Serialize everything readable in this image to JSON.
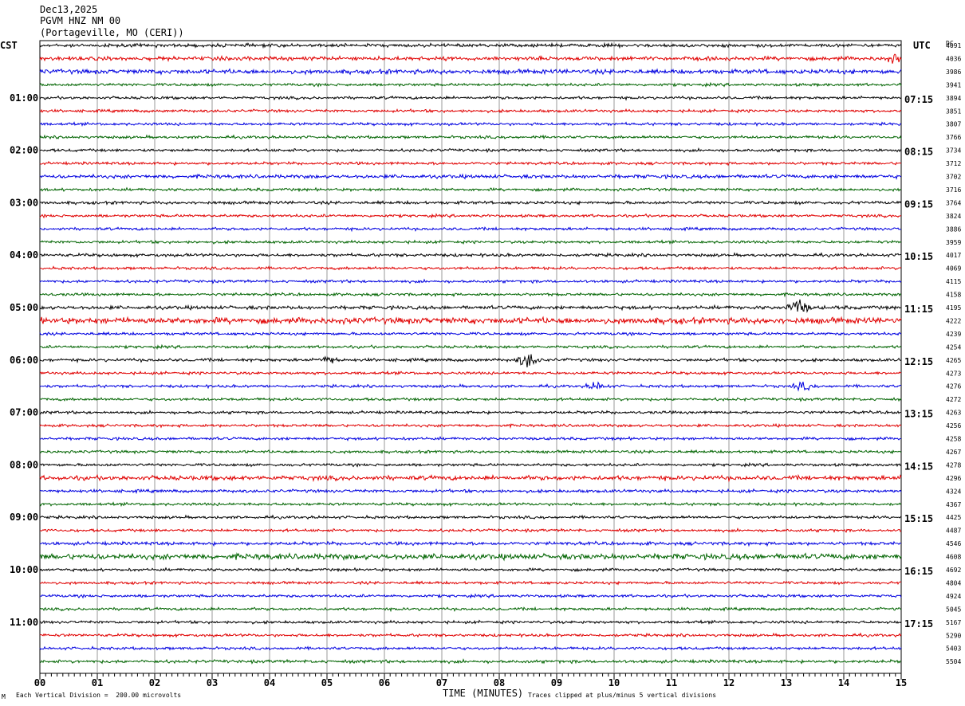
{
  "header": {
    "date": "Dec13,2025",
    "station": "PGVM HNZ NM 00",
    "location": "(Portageville, MO (CERI))"
  },
  "left_timezone": "CST",
  "right_timezone": "UTC",
  "dc_label": "DC",
  "footer": {
    "scale_note": "Each Vertical Division =  200.00 microvolts",
    "clip_note": "Traces clipped at plus/minus 5 vertical divisions",
    "mark": "M"
  },
  "colors": {
    "black": "#000000",
    "red": "#e00000",
    "blue": "#0000e0",
    "green": "#006400",
    "grid": "#9a9a9a"
  },
  "chart_data": {
    "type": "line",
    "title": "",
    "xlabel": "TIME (MINUTES)",
    "x_ticks": [
      "00",
      "01",
      "02",
      "03",
      "04",
      "05",
      "06",
      "07",
      "08",
      "09",
      "10",
      "11",
      "12",
      "13",
      "14",
      "15"
    ],
    "xlim": [
      0,
      15
    ],
    "row_minutes": 15,
    "trace_color_cycle": [
      "black",
      "red",
      "blue",
      "green"
    ],
    "left_hour_labels": [
      "01:00",
      "02:00",
      "03:00",
      "04:00",
      "05:00",
      "06:00",
      "07:00",
      "08:00",
      "09:00",
      "10:00",
      "11:00"
    ],
    "right_hour_labels": [
      "07:15",
      "08:15",
      "09:15",
      "10:15",
      "11:15",
      "12:15",
      "13:15",
      "14:15",
      "15:15",
      "16:15",
      "17:15"
    ],
    "dc_offsets": [
      4091,
      4036,
      3986,
      3941,
      3894,
      3851,
      3807,
      3766,
      3734,
      3712,
      3702,
      3716,
      3764,
      3824,
      3886,
      3959,
      4017,
      4069,
      4115,
      4158,
      4195,
      4222,
      4239,
      4254,
      4265,
      4273,
      4276,
      4272,
      4263,
      4256,
      4258,
      4267,
      4278,
      4296,
      4324,
      4367,
      4425,
      4487,
      4546,
      4608,
      4692,
      4804,
      4924,
      5045,
      5167,
      5290,
      5403,
      5504
    ],
    "noise_level": [
      1.2,
      1.4,
      1.6,
      1,
      1,
      1,
      1,
      1,
      1,
      1,
      1.3,
      1,
      1.1,
      1,
      1,
      1,
      1.1,
      1,
      1,
      1,
      1.3,
      2.2,
      1,
      1,
      1.1,
      1,
      1,
      1,
      1,
      1,
      1,
      1,
      1,
      1.6,
      1.1,
      1,
      1,
      1,
      1.2,
      2,
      1,
      1,
      1,
      1,
      1,
      1,
      1,
      1.1
    ],
    "events": [
      {
        "row": 1,
        "minute": 14.9,
        "amplitude": "small"
      },
      {
        "row": 20,
        "minute": 13.2,
        "amplitude": "medium"
      },
      {
        "row": 24,
        "minute": 5.0,
        "amplitude": "small"
      },
      {
        "row": 24,
        "minute": 8.5,
        "amplitude": "medium"
      },
      {
        "row": 26,
        "minute": 9.7,
        "amplitude": "small"
      },
      {
        "row": 26,
        "minute": 13.3,
        "amplitude": "small"
      }
    ]
  }
}
